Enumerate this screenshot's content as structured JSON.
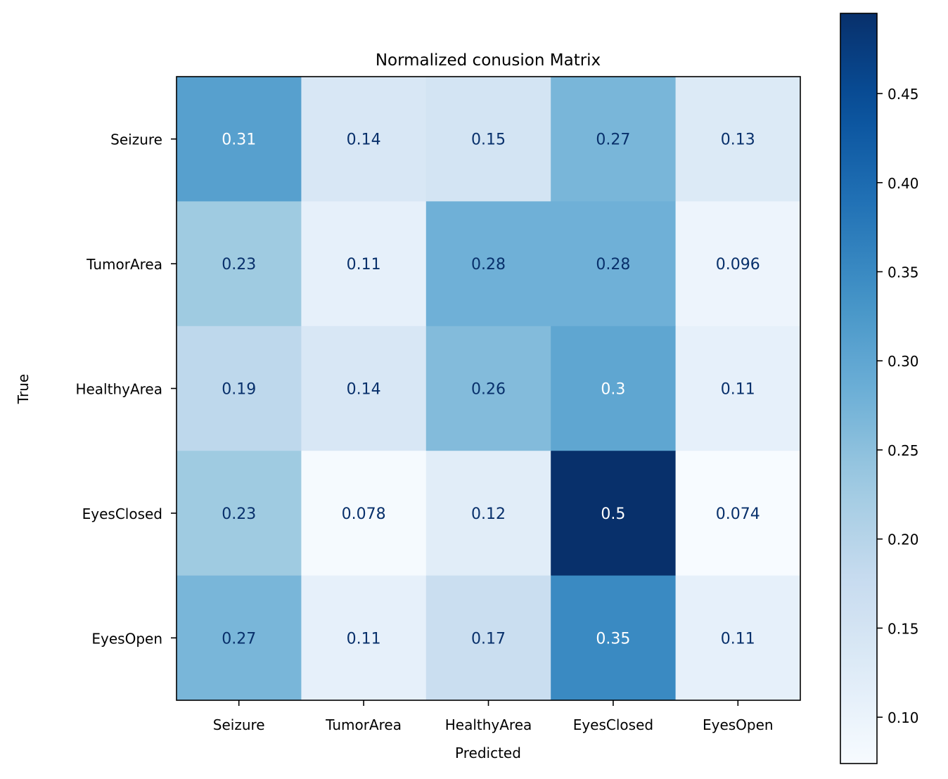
{
  "chart_data": {
    "type": "heatmap",
    "title": "Normalized conusion Matrix",
    "xlabel": "Predicted",
    "ylabel": "True",
    "x_categories": [
      "Seizure",
      "TumorArea",
      "HealthyArea",
      "EyesClosed",
      "EyesOpen"
    ],
    "y_categories": [
      "Seizure",
      "TumorArea",
      "HealthyArea",
      "EyesClosed",
      "EyesOpen"
    ],
    "values": [
      [
        0.31,
        0.14,
        0.15,
        0.27,
        0.13
      ],
      [
        0.23,
        0.11,
        0.28,
        0.28,
        0.096
      ],
      [
        0.19,
        0.14,
        0.26,
        0.3,
        0.11
      ],
      [
        0.23,
        0.078,
        0.12,
        0.5,
        0.074
      ],
      [
        0.27,
        0.11,
        0.17,
        0.35,
        0.11
      ]
    ],
    "cell_labels": [
      [
        "0.31",
        "0.14",
        "0.15",
        "0.27",
        "0.13"
      ],
      [
        "0.23",
        "0.11",
        "0.28",
        "0.28",
        "0.096"
      ],
      [
        "0.19",
        "0.14",
        "0.26",
        "0.3",
        "0.11"
      ],
      [
        "0.23",
        "0.078",
        "0.12",
        "0.5",
        "0.074"
      ],
      [
        "0.27",
        "0.11",
        "0.17",
        "0.35",
        "0.11"
      ]
    ],
    "colorbar": {
      "colormap": "Blues",
      "range": [
        0.074,
        0.495
      ],
      "ticks": [
        0.1,
        0.15,
        0.2,
        0.25,
        0.3,
        0.35,
        0.4,
        0.45
      ],
      "tick_labels": [
        "0.10",
        "0.15",
        "0.20",
        "0.25",
        "0.30",
        "0.35",
        "0.40",
        "0.45"
      ]
    },
    "text_colors": {
      "dark": "#08306b",
      "light": "#ffffff"
    },
    "grid": false
  }
}
